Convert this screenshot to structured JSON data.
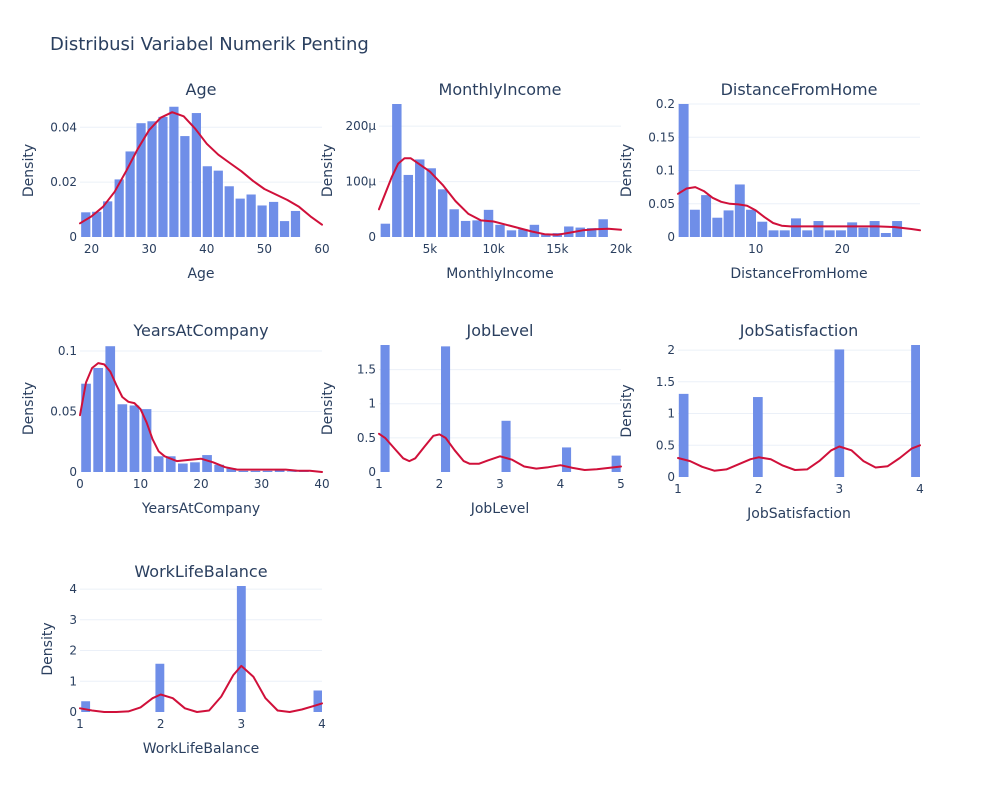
{
  "title": "Distribusi Variabel Numerik Penting",
  "colors": {
    "bar": "#6f8ee8",
    "kde": "#d0103a",
    "grid": "#ebf0f8",
    "text": "#2a3f5f"
  },
  "chart_data": [
    {
      "type": "bar",
      "title": "Age",
      "xlabel": "Age",
      "ylabel": "Density",
      "xlim": [
        18,
        60
      ],
      "ylim": [
        0,
        0.0485
      ],
      "xticks": [
        20,
        30,
        40,
        50,
        60
      ],
      "xtick_labels": [
        "20",
        "30",
        "40",
        "50",
        "60"
      ],
      "yticks": [
        0,
        0.02,
        0.04
      ],
      "ytick_labels": [
        "0",
        "0.02",
        "0.04"
      ],
      "bar_width": 1.6,
      "bars_x": [
        19.0,
        20.9,
        22.8,
        24.8,
        26.7,
        28.6,
        30.5,
        32.4,
        34.3,
        36.2,
        38.2,
        40.1,
        42.0,
        43.9,
        45.8,
        47.7,
        49.6,
        51.6,
        53.5,
        55.4,
        57.3,
        59.2
      ],
      "bars_y": [
        0.009,
        0.0092,
        0.013,
        0.021,
        0.0312,
        0.0415,
        0.0422,
        0.0438,
        0.0475,
        0.0368,
        0.0452,
        0.0258,
        0.0242,
        0.0185,
        0.014,
        0.0155,
        0.0115,
        0.0128,
        0.0058,
        0.0095,
        0.0,
        0.0
      ],
      "kde_x": [
        18,
        20,
        22,
        24,
        26,
        28,
        30,
        32,
        34,
        36,
        38,
        40,
        42,
        44,
        46,
        48,
        50,
        52,
        54,
        56,
        58,
        60
      ],
      "kde_y": [
        0.005,
        0.0075,
        0.011,
        0.0165,
        0.024,
        0.032,
        0.039,
        0.0435,
        0.0455,
        0.044,
        0.0395,
        0.034,
        0.03,
        0.027,
        0.024,
        0.0205,
        0.0175,
        0.0155,
        0.0135,
        0.011,
        0.0075,
        0.0045
      ]
    },
    {
      "type": "bar",
      "title": "MonthlyIncome",
      "xlabel": "MonthlyIncome",
      "ylabel": "Density",
      "xlim": [
        1000,
        20000
      ],
      "ylim": [
        0,
        0.00024
      ],
      "xticks": [
        5000,
        10000,
        15000,
        20000
      ],
      "xtick_labels": [
        "5k",
        "10k",
        "15k",
        "20k"
      ],
      "yticks": [
        0,
        0.0001,
        0.0002
      ],
      "ytick_labels": [
        "0",
        "100µ",
        "200µ"
      ],
      "bar_width": 740,
      "bars_x": [
        1500,
        2400,
        3300,
        4200,
        5100,
        6000,
        6900,
        7800,
        8700,
        9600,
        10500,
        11400,
        12300,
        13200,
        14100,
        15000,
        15900,
        16800,
        17700,
        18600,
        19500
      ],
      "bars_y": [
        2.4e-05,
        0.00024,
        0.000112,
        0.00014,
        0.000124,
        8.6e-05,
        5e-05,
        2.9e-05,
        3e-05,
        4.9e-05,
        2.2e-05,
        1.2e-05,
        1.4e-05,
        2.2e-05,
        6e-06,
        7e-06,
        1.9e-05,
        1.7e-05,
        1.6e-05,
        3.2e-05,
        0.0
      ],
      "kde_x": [
        1000,
        2000,
        2500,
        3000,
        3500,
        4000,
        5000,
        6000,
        7000,
        8000,
        9000,
        10000,
        11000,
        12000,
        13000,
        14000,
        15000,
        16000,
        17000,
        18000,
        19000,
        20000
      ],
      "kde_y": [
        5e-05,
        0.000108,
        0.000132,
        0.000142,
        0.000142,
        0.000134,
        0.000118,
        9.4e-05,
        6.5e-05,
        4.2e-05,
        3e-05,
        2.8e-05,
        2.2e-05,
        1.6e-05,
        1e-05,
        5e-06,
        4e-06,
        8e-06,
        1.2e-05,
        1.4e-05,
        1.5e-05,
        1.3e-05
      ]
    },
    {
      "type": "bar",
      "title": "DistanceFromHome",
      "xlabel": "DistanceFromHome",
      "ylabel": "Density",
      "xlim": [
        1,
        29
      ],
      "ylim": [
        0,
        0.2
      ],
      "xticks": [
        10,
        20
      ],
      "xtick_labels": [
        "10",
        "20"
      ],
      "yticks": [
        0,
        0.05,
        0.1,
        0.15,
        0.2
      ],
      "ytick_labels": [
        "0",
        "0.05",
        "0.1",
        "0.15",
        "0.2"
      ],
      "bar_width": 1.15,
      "bars_x": [
        1.65,
        2.95,
        4.25,
        5.55,
        6.85,
        8.15,
        9.45,
        10.75,
        12.05,
        13.35,
        14.65,
        15.95,
        17.25,
        18.55,
        19.85,
        21.15,
        22.45,
        23.75,
        25.05,
        26.35,
        27.65,
        28.95
      ],
      "bars_y": [
        0.2,
        0.041,
        0.063,
        0.029,
        0.04,
        0.079,
        0.041,
        0.023,
        0.01,
        0.01,
        0.028,
        0.01,
        0.024,
        0.01,
        0.01,
        0.022,
        0.014,
        0.024,
        0.006,
        0.024,
        0.0,
        0.0
      ],
      "kde_x": [
        1,
        2,
        3,
        4,
        5,
        6,
        7,
        8,
        9,
        10,
        11,
        12,
        13,
        14,
        15,
        16,
        18,
        20,
        22,
        24,
        26,
        28,
        29
      ],
      "kde_y": [
        0.065,
        0.073,
        0.075,
        0.069,
        0.059,
        0.053,
        0.05,
        0.049,
        0.047,
        0.04,
        0.03,
        0.021,
        0.017,
        0.016,
        0.016,
        0.016,
        0.016,
        0.016,
        0.016,
        0.016,
        0.015,
        0.012,
        0.01
      ]
    },
    {
      "type": "bar",
      "title": "YearsAtCompany",
      "xlabel": "YearsAtCompany",
      "ylabel": "Density",
      "xlim": [
        0,
        40
      ],
      "ylim": [
        0,
        0.105
      ],
      "xticks": [
        0,
        10,
        20,
        30,
        40
      ],
      "xtick_labels": [
        "0",
        "10",
        "20",
        "30",
        "40"
      ],
      "yticks": [
        0,
        0.05,
        0.1
      ],
      "ytick_labels": [
        "0",
        "0.05",
        "0.1"
      ],
      "bar_width": 1.6,
      "bars_x": [
        1.0,
        3.0,
        5.0,
        7.0,
        9.0,
        11.0,
        13.0,
        15.0,
        17.0,
        19.0,
        21.0,
        23.0,
        25.0,
        27.0,
        29.0,
        31.0,
        33.0,
        35.0,
        37.0,
        39.0
      ],
      "bars_y": [
        0.073,
        0.086,
        0.104,
        0.056,
        0.055,
        0.052,
        0.013,
        0.013,
        0.007,
        0.008,
        0.014,
        0.006,
        0.003,
        0.001,
        0.001,
        0.001,
        0.002,
        0.0005,
        0.0005,
        0.0
      ],
      "kde_x": [
        0,
        1,
        2,
        3,
        4,
        5,
        6,
        7,
        8,
        9,
        10,
        11,
        12,
        13,
        14,
        16,
        18,
        20,
        22,
        24,
        26,
        28,
        30,
        32,
        34,
        36,
        38,
        40
      ],
      "kde_y": [
        0.047,
        0.074,
        0.086,
        0.09,
        0.089,
        0.083,
        0.072,
        0.062,
        0.058,
        0.057,
        0.052,
        0.041,
        0.027,
        0.017,
        0.013,
        0.009,
        0.01,
        0.011,
        0.008,
        0.004,
        0.002,
        0.002,
        0.002,
        0.002,
        0.002,
        0.001,
        0.001,
        0.0
      ]
    },
    {
      "type": "bar",
      "title": "JobLevel",
      "xlabel": "JobLevel",
      "ylabel": "Density",
      "xlim": [
        1,
        5
      ],
      "ylim": [
        0,
        1.86
      ],
      "xticks": [
        1,
        2,
        3,
        4,
        5
      ],
      "xtick_labels": [
        "1",
        "2",
        "3",
        "4",
        "5"
      ],
      "yticks": [
        0,
        0.5,
        1,
        1.5
      ],
      "ytick_labels": [
        "0",
        "0.5",
        "1",
        "1.5"
      ],
      "bar_width": 0.15,
      "bars_x": [
        1.1,
        2.1,
        3.1,
        4.1,
        4.92
      ],
      "bars_y": [
        1.86,
        1.84,
        0.75,
        0.36,
        0.24
      ],
      "kde_x": [
        1.0,
        1.1,
        1.25,
        1.4,
        1.5,
        1.6,
        1.75,
        1.9,
        2.0,
        2.1,
        2.25,
        2.4,
        2.5,
        2.65,
        2.8,
        3.0,
        3.2,
        3.4,
        3.6,
        3.8,
        4.0,
        4.2,
        4.4,
        4.6,
        4.8,
        5.0
      ],
      "kde_y": [
        0.56,
        0.5,
        0.35,
        0.2,
        0.16,
        0.2,
        0.37,
        0.53,
        0.55,
        0.5,
        0.32,
        0.16,
        0.12,
        0.12,
        0.17,
        0.23,
        0.18,
        0.08,
        0.05,
        0.07,
        0.1,
        0.06,
        0.03,
        0.04,
        0.06,
        0.08
      ]
    },
    {
      "type": "bar",
      "title": "JobSatisfaction",
      "xlabel": "JobSatisfaction",
      "ylabel": "Density",
      "xlim": [
        1,
        4
      ],
      "ylim": [
        0,
        2.08
      ],
      "xticks": [
        1,
        2,
        3,
        4
      ],
      "xtick_labels": [
        "1",
        "2",
        "3",
        "4"
      ],
      "yticks": [
        0,
        0.5,
        1,
        1.5,
        2
      ],
      "ytick_labels": [
        "0",
        "0.5",
        "1",
        "1.5",
        "2"
      ],
      "bar_width": 0.12,
      "bars_x": [
        1.07,
        1.99,
        3.0,
        3.95
      ],
      "bars_y": [
        1.31,
        1.26,
        2.01,
        2.08
      ],
      "kde_x": [
        1.0,
        1.15,
        1.3,
        1.45,
        1.6,
        1.75,
        1.9,
        2.0,
        2.15,
        2.3,
        2.45,
        2.6,
        2.75,
        2.9,
        3.0,
        3.15,
        3.3,
        3.45,
        3.6,
        3.75,
        3.9,
        4.0
      ],
      "kde_y": [
        0.3,
        0.25,
        0.16,
        0.1,
        0.12,
        0.2,
        0.28,
        0.31,
        0.28,
        0.18,
        0.11,
        0.12,
        0.25,
        0.42,
        0.48,
        0.42,
        0.25,
        0.15,
        0.17,
        0.3,
        0.45,
        0.5
      ]
    },
    {
      "type": "bar",
      "title": "WorkLifeBalance",
      "xlabel": "WorkLifeBalance",
      "ylabel": "Density",
      "xlim": [
        1,
        4
      ],
      "ylim": [
        0,
        4.1
      ],
      "xticks": [
        1,
        2,
        3,
        4
      ],
      "xtick_labels": [
        "1",
        "2",
        "3",
        "4"
      ],
      "yticks": [
        0,
        1,
        2,
        3,
        4
      ],
      "ytick_labels": [
        "0",
        "1",
        "2",
        "3",
        "4"
      ],
      "bar_width": 0.11,
      "bars_x": [
        1.07,
        1.99,
        3.0,
        3.95
      ],
      "bars_y": [
        0.35,
        1.57,
        4.1,
        0.7
      ],
      "kde_x": [
        1.0,
        1.15,
        1.3,
        1.45,
        1.6,
        1.75,
        1.9,
        2.0,
        2.15,
        2.3,
        2.45,
        2.6,
        2.75,
        2.9,
        3.0,
        3.15,
        3.3,
        3.45,
        3.6,
        3.75,
        3.9,
        4.0
      ],
      "kde_y": [
        0.12,
        0.05,
        0.0,
        0.0,
        0.02,
        0.15,
        0.45,
        0.57,
        0.45,
        0.12,
        0.0,
        0.05,
        0.5,
        1.2,
        1.5,
        1.15,
        0.45,
        0.05,
        0.0,
        0.08,
        0.2,
        0.28
      ]
    }
  ]
}
